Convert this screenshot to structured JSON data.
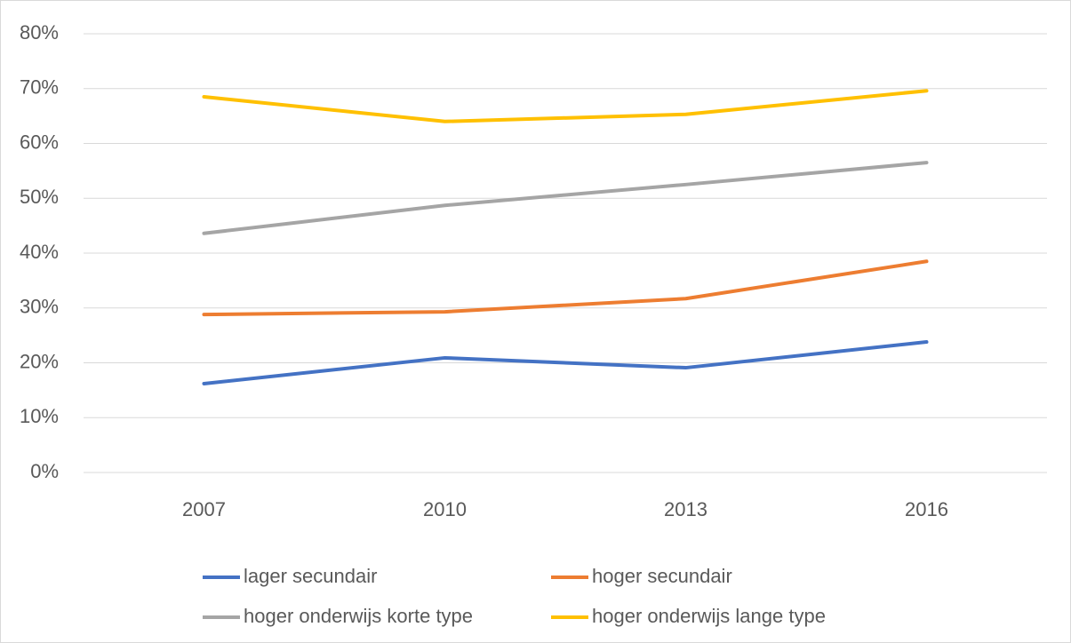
{
  "chart_data": {
    "type": "line",
    "categories": [
      "2007",
      "2010",
      "2013",
      "2016"
    ],
    "series": [
      {
        "name": "lager secundair",
        "color": "#4472c4",
        "values": [
          16.2,
          20.9,
          19.1,
          23.8
        ]
      },
      {
        "name": "hoger secundair",
        "color": "#ed7d31",
        "values": [
          28.8,
          29.3,
          31.7,
          38.5
        ]
      },
      {
        "name": "hoger onderwijs korte type",
        "color": "#a5a5a5",
        "values": [
          43.6,
          48.7,
          52.5,
          56.5
        ]
      },
      {
        "name": "hoger onderwijs lange type",
        "color": "#ffc000",
        "values": [
          68.5,
          64.0,
          65.3,
          69.6
        ]
      }
    ],
    "ylim": [
      0,
      80
    ],
    "yticks": [
      {
        "value": 0,
        "label": "0%"
      },
      {
        "value": 10,
        "label": "10%"
      },
      {
        "value": 20,
        "label": "20%"
      },
      {
        "value": 30,
        "label": "30%"
      },
      {
        "value": 40,
        "label": "40%"
      },
      {
        "value": 50,
        "label": "50%"
      },
      {
        "value": 60,
        "label": "60%"
      },
      {
        "value": 70,
        "label": "70%"
      },
      {
        "value": 80,
        "label": "80%"
      }
    ],
    "grid": true,
    "legend": "bottom"
  }
}
